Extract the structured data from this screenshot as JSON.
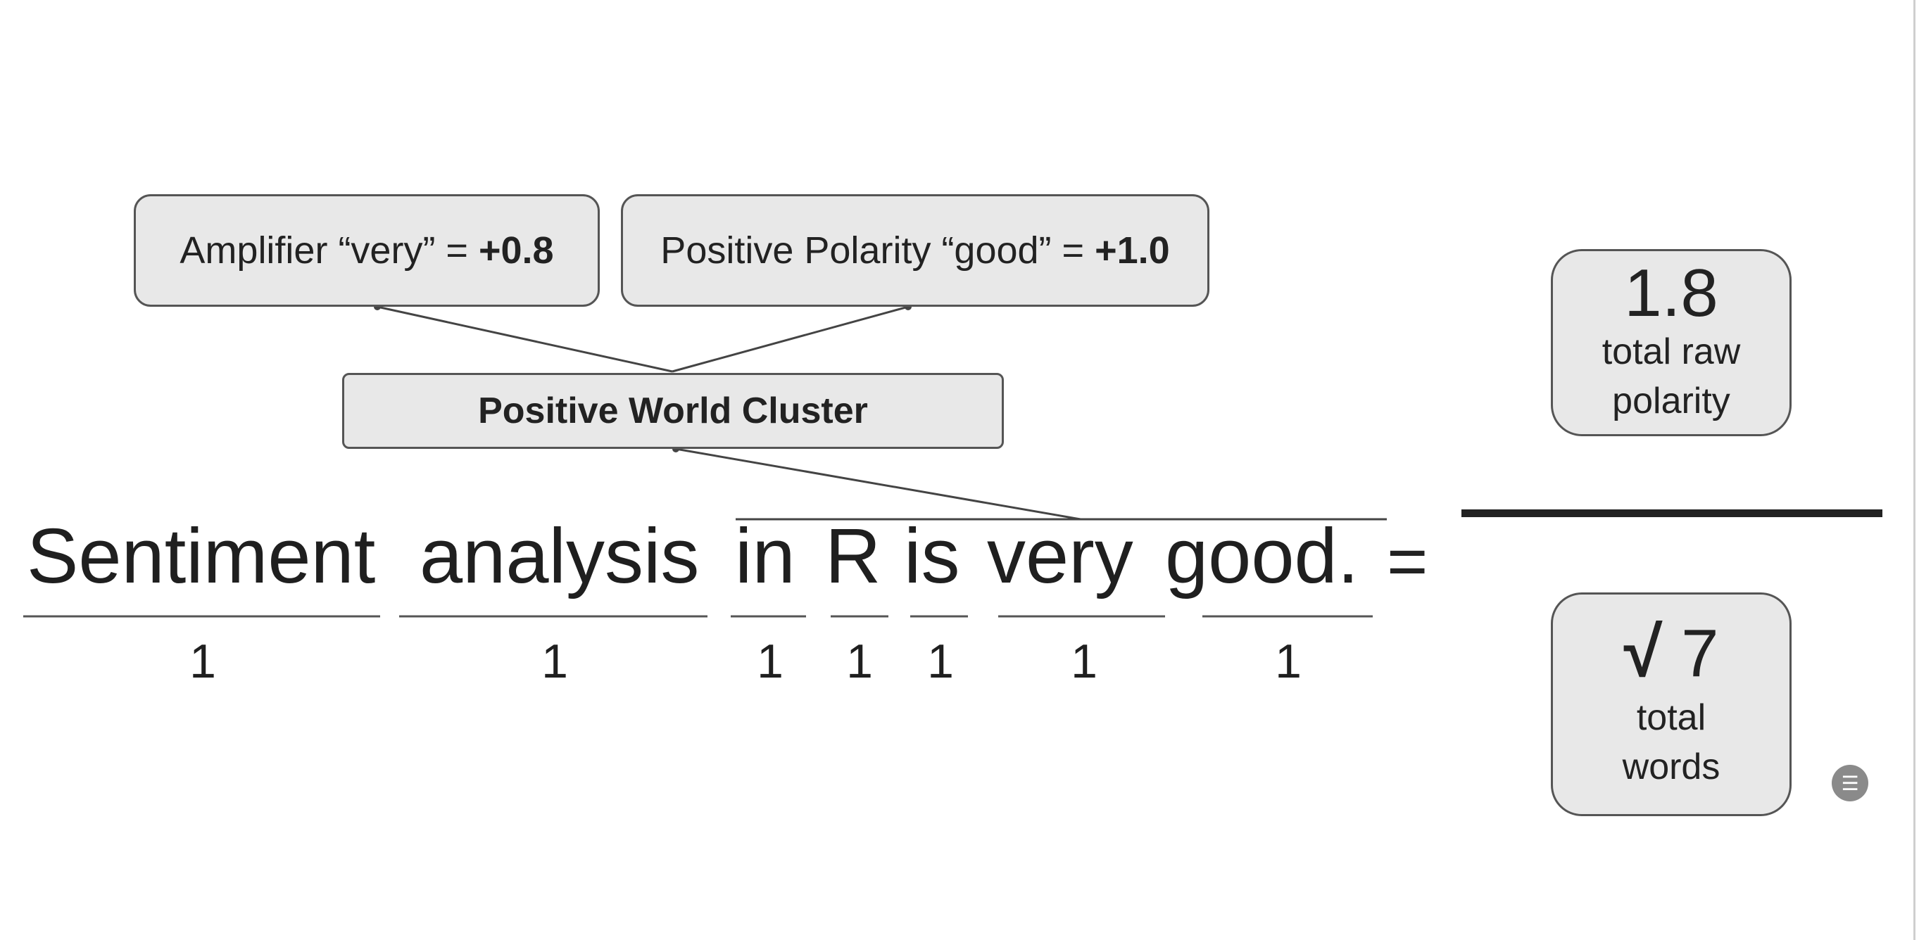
{
  "top_boxes": {
    "amplifier": {
      "text": "Amplifier “very” = ",
      "value": "+0.8"
    },
    "polarity": {
      "text": "Positive Polarity “good” = ",
      "value": "+1.0"
    }
  },
  "cluster_label": "Positive World Cluster",
  "sentence": {
    "words": [
      "Sentiment",
      "analysis",
      "in",
      "R",
      "is",
      "very",
      "good."
    ],
    "counts": [
      "1",
      "1",
      "1",
      "1",
      "1",
      "1",
      "1"
    ],
    "equals": "="
  },
  "numerator": {
    "value": "1.8",
    "line1": "total raw",
    "line2": "polarity"
  },
  "denominator": {
    "sqrt_symbol": "√",
    "value": "7",
    "line1": "total",
    "line2": "words"
  },
  "colors": {
    "box_fill": "#e8e8e8",
    "box_border": "#555555",
    "text": "#222222"
  },
  "icons": {
    "scroll_button": "scroll-icon"
  }
}
